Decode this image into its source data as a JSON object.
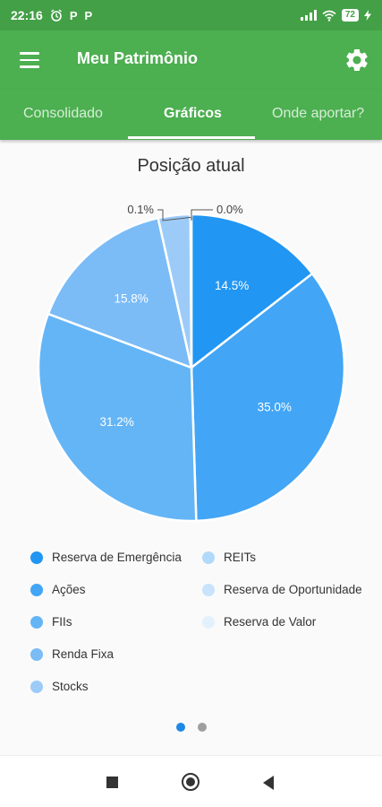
{
  "status_bar": {
    "time": "22:16",
    "notification_icons": [
      "alarm-icon",
      "p-icon",
      "p-icon"
    ],
    "battery": "72"
  },
  "app_bar": {
    "title": "Meu Patrimônio",
    "menu_icon": "menu-icon",
    "settings_icon": "gear-icon"
  },
  "tabs": [
    {
      "label": "Consolidado",
      "active": false
    },
    {
      "label": "Gráficos",
      "active": true
    },
    {
      "label": "Onde aportar?",
      "active": false
    }
  ],
  "chart_title": "Posição atual",
  "chart_data": {
    "type": "pie",
    "title": "Posição atual",
    "slices": [
      {
        "label": "Reserva de Emergência",
        "value": 14.5,
        "text": "14.5%",
        "color": "#2196f3"
      },
      {
        "label": "Ações",
        "value": 35.0,
        "text": "35.0%",
        "color": "#42a5f5"
      },
      {
        "label": "FIIs",
        "value": 31.2,
        "text": "31.2%",
        "color": "#64b5f6"
      },
      {
        "label": "Renda Fixa",
        "value": 15.8,
        "text": "15.8%",
        "color": "#7bbcf7"
      },
      {
        "label": "Stocks",
        "value": 3.4,
        "text": "",
        "color": "#9dcbf8"
      },
      {
        "label": "REITs",
        "value": 0.1,
        "text": "0.1%",
        "color": "#b3d9fa"
      },
      {
        "label": "Reserva de Oportunidade",
        "value": 0.0,
        "text": "0.0%",
        "color": "#c8e3fb"
      },
      {
        "label": "Reserva de Valor",
        "value": 0.0,
        "text": "",
        "color": "#e3f1fd"
      }
    ],
    "legend_position": "bottom"
  },
  "legend": [
    {
      "label": "Reserva de Emergência",
      "color": "#2196f3"
    },
    {
      "label": "Ações",
      "color": "#42a5f5"
    },
    {
      "label": "FIIs",
      "color": "#64b5f6"
    },
    {
      "label": "Renda Fixa",
      "color": "#7bbcf7"
    },
    {
      "label": "Stocks",
      "color": "#9dcbf8"
    },
    {
      "label": "REITs",
      "color": "#b3d9fa"
    },
    {
      "label": "Reserva de Oportunidade",
      "color": "#c8e3fb"
    },
    {
      "label": "Reserva de Valor",
      "color": "#e3f1fd"
    }
  ],
  "pager": {
    "pages": 2,
    "current": 1,
    "active_color": "#1e88e5",
    "inactive_color": "#9e9e9e"
  },
  "colors": {
    "primary": "#4caf50",
    "status": "#43a047"
  }
}
